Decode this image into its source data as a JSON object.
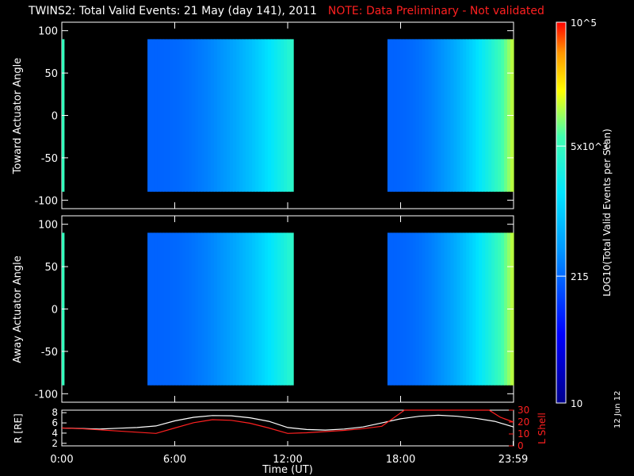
{
  "title": "TWINS2: Total Valid Events: 21 May (day 141), 2011",
  "note": "NOTE: Data Preliminary - Not validated",
  "date_stamp": "12 Jun 12",
  "colors": {
    "background": "#000000",
    "axis": "#ffffff",
    "note": "#ff2020",
    "r_line": "#ffffff",
    "lshell_line": "#ff2020"
  },
  "chart_data": [
    {
      "type": "heatmap",
      "ylabel": "Toward Actuator Angle",
      "yticks": [
        "100",
        "50",
        "0",
        "-50",
        "-100"
      ],
      "ylim": [
        -110,
        110
      ],
      "xlim": [
        0,
        24
      ],
      "data_y_range": [
        -90,
        90
      ],
      "segments": [
        {
          "start": 0.0,
          "end": 0.12,
          "log_level": 3.7
        },
        {
          "start": 4.55,
          "end": 12.3,
          "start_log_level": 2.3,
          "end_log_level": 3.6
        },
        {
          "start": 17.3,
          "end": 24.0,
          "start_log_level": 2.3,
          "end_log_level": 4.1
        }
      ]
    },
    {
      "type": "heatmap",
      "ylabel": "Away Actuator Angle",
      "yticks": [
        "100",
        "50",
        "0",
        "-50",
        "-100"
      ],
      "ylim": [
        -110,
        110
      ],
      "xlim": [
        0,
        24
      ],
      "data_y_range": [
        -90,
        90
      ],
      "segments": [
        {
          "start": 0.0,
          "end": 0.12,
          "log_level": 3.7
        },
        {
          "start": 4.55,
          "end": 12.3,
          "start_log_level": 2.3,
          "end_log_level": 3.6
        },
        {
          "start": 17.3,
          "end": 24.0,
          "start_log_level": 2.3,
          "end_log_level": 4.1
        }
      ]
    },
    {
      "type": "colorbar",
      "label": "LOG10(Total Valid Events per Scan)",
      "ticks": [
        {
          "label": "10",
          "value": 10
        },
        {
          "label": "215",
          "value": 215
        },
        {
          "label": "5x10^3",
          "value": 5000
        },
        {
          "label": "10^5",
          "value": 100000
        }
      ],
      "range": [
        10,
        100000
      ],
      "scale": "log"
    },
    {
      "type": "line",
      "xlabel": "Time (UT)",
      "xticks": [
        "0:00",
        "6:00",
        "12:00",
        "18:00",
        "23:59"
      ],
      "xtick_values": [
        0,
        6,
        12,
        18,
        23.98
      ],
      "xlim": [
        0,
        24
      ],
      "left_axis": {
        "label": "R [RE]",
        "ticks": [
          "2",
          "4",
          "6",
          "8"
        ],
        "ylim": [
          1.5,
          8.5
        ]
      },
      "right_axis": {
        "label": "L Shell",
        "ticks": [
          "0",
          "10",
          "20",
          "30"
        ],
        "ylim": [
          0,
          30
        ]
      },
      "series": [
        {
          "name": "R",
          "axis": "left",
          "x": [
            0,
            1,
            2,
            3,
            4,
            5,
            6,
            7,
            8,
            9,
            10,
            11,
            12,
            13,
            14,
            15,
            16,
            17,
            18,
            19,
            20,
            21,
            22,
            23,
            24
          ],
          "y": [
            5.0,
            4.9,
            4.8,
            4.95,
            5.1,
            5.4,
            6.4,
            7.1,
            7.45,
            7.4,
            7.0,
            6.3,
            5.1,
            4.7,
            4.6,
            4.8,
            5.2,
            6.0,
            6.8,
            7.3,
            7.5,
            7.3,
            6.9,
            6.3,
            5.2
          ]
        },
        {
          "name": "L Shell",
          "axis": "right",
          "x": [
            0,
            1,
            2,
            3,
            4,
            5,
            6,
            7,
            8,
            9,
            10,
            11,
            12,
            13,
            14,
            15,
            16,
            17,
            17.5,
            18.2,
            22.7,
            23.3,
            24
          ],
          "y": [
            15,
            14.5,
            13.5,
            12.5,
            11.5,
            10.5,
            15,
            19.5,
            22,
            21.5,
            19,
            15,
            10.5,
            11,
            12,
            13,
            14.5,
            16.5,
            22,
            30,
            30,
            24,
            20
          ]
        }
      ]
    }
  ]
}
